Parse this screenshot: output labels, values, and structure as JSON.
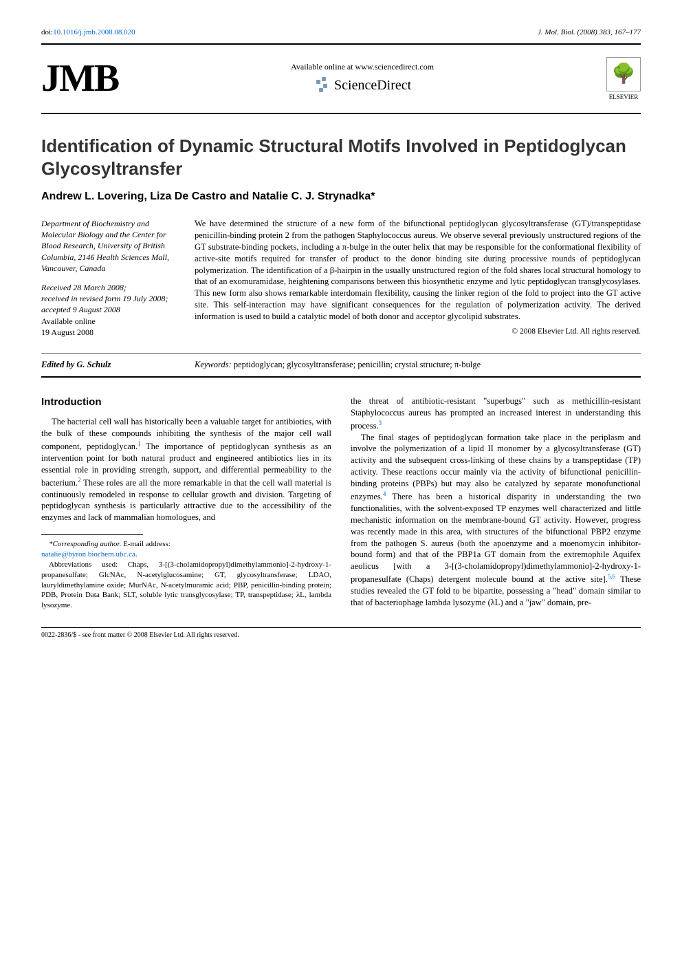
{
  "topbar": {
    "doi_label": "doi:",
    "doi": "10.1016/j.jmb.2008.08.020",
    "journal_ref": "J. Mol. Biol. (2008) 383, 167–177"
  },
  "header": {
    "jmb_logo": "JMB",
    "available_online": "Available online at www.sciencedirect.com",
    "sciencedirect": "ScienceDirect",
    "elsevier": "ELSEVIER"
  },
  "title": "Identification of Dynamic Structural Motifs Involved in Peptidoglycan Glycosyltransfer",
  "authors": "Andrew L. Lovering, Liza De Castro and Natalie C. J. Strynadka*",
  "meta": {
    "affiliation": "Department of Biochemistry and Molecular Biology and the Center for Blood Research, University of British Columbia, 2146 Health Sciences Mall, Vancouver, Canada",
    "received": "Received 28 March 2008;",
    "revised": "received in revised form 19 July 2008;",
    "accepted": "accepted 9 August 2008",
    "online_label": "Available online",
    "online_date": "19 August 2008"
  },
  "abstract": "We have determined the structure of a new form of the bifunctional peptidoglycan glycosyltransferase (GT)/transpeptidase penicillin-binding protein 2 from the pathogen Staphylococcus aureus. We observe several previously unstructured regions of the GT substrate-binding pockets, including a π-bulge in the outer helix that may be responsible for the conformational flexibility of active-site motifs required for transfer of product to the donor binding site during processive rounds of peptidoglycan polymerization. The identification of a β-hairpin in the usually unstructured region of the fold shares local structural homology to that of an exomuramidase, heightening comparisons between this biosynthetic enzyme and lytic peptidoglycan transglycosylases. This new form also shows remarkable interdomain flexibility, causing the linker region of the fold to project into the GT active site. This self-interaction may have significant consequences for the regulation of polymerization activity. The derived information is used to build a catalytic model of both donor and acceptor glycolipid substrates.",
  "copyright": "© 2008 Elsevier Ltd. All rights reserved.",
  "edited_by": "Edited by G. Schulz",
  "keywords_label": "Keywords:",
  "keywords": " peptidoglycan; glycosyltransferase; penicillin; crystal structure; π-bulge",
  "intro_heading": "Introduction",
  "intro_para1_a": "The bacterial cell wall has historically been a valuable target for antibiotics, with the bulk of these compounds inhibiting the synthesis of the major cell wall component, peptidoglycan.",
  "intro_para1_b": " The importance of peptidoglycan synthesis as an intervention point for both natural product and engineered antibiotics lies in its essential role in providing strength, support, and differential permeability to the bacterium.",
  "intro_para1_c": " These roles are all the more remarkable in that the cell wall material is continuously remodeled in response to cellular growth and division. Targeting of peptidoglycan synthesis is particularly attractive due to the accessibility of the enzymes and lack of mammalian homologues, and",
  "col2_para1_a": "the threat of antibiotic-resistant \"superbugs\" such as methicillin-resistant Staphylococcus aureus has prompted an increased interest in understanding this process.",
  "col2_para2_a": "The final stages of peptidoglycan formation take place in the periplasm and involve the polymerization of a lipid II monomer by a glycosyltransferase (GT) activity and the subsequent cross-linking of these chains by a transpeptidase (TP) activity. These reactions occur mainly via the activity of bifunctional penicillin-binding proteins (PBPs) but may also be catalyzed by separate monofunctional enzymes.",
  "col2_para2_b": " There has been a historical disparity in understanding the two functionalities, with the solvent-exposed TP enzymes well characterized and little mechanistic information on the membrane-bound GT activity. However, progress was recently made in this area, with structures of the bifunctional PBP2 enzyme from the pathogen S. aureus (both the apoenzyme and a moenomycin inhibitor-bound form) and that of the PBP1a GT domain from the extremophile Aquifex aeolicus [with a 3-[(3-cholamidopropyl)dimethylammonio]-2-hydroxy-1-propanesulfate (Chaps) detergent molecule bound at the active site].",
  "col2_para2_c": " These studies revealed the GT fold to be bipartite, possessing a \"head\" domain similar to that of bacteriophage lambda lysozyme (λL) and a \"jaw\" domain, pre-",
  "refs": {
    "r1": "1",
    "r2": "2",
    "r3": "3",
    "r4": "4",
    "r56": "5,6"
  },
  "footnotes": {
    "corr_label": "*Corresponding author.",
    "corr_text": " E-mail address:",
    "email": "natalie@byron.biochem.ubc.ca",
    "abbrev": "Abbreviations used: Chaps, 3-[(3-cholamidopropyl)dimethylammonio]-2-hydroxy-1-propanesulfate; GlcNAc, N-acetylglucosamine; GT, glycosyltransferase; LDAO, lauryldimethylamine oxide; MurNAc, N-acetylmuramic acid; PBP, penicillin-binding protein; PDB, Protein Data Bank; SLT, soluble lytic transglycosylase; TP, transpeptidase; λL, lambda lysozyme."
  },
  "bottom": "0022-2836/$ - see front matter © 2008 Elsevier Ltd. All rights reserved.",
  "colors": {
    "link": "#0066cc",
    "text": "#000000",
    "heading": "#333333",
    "rule": "#000000"
  }
}
